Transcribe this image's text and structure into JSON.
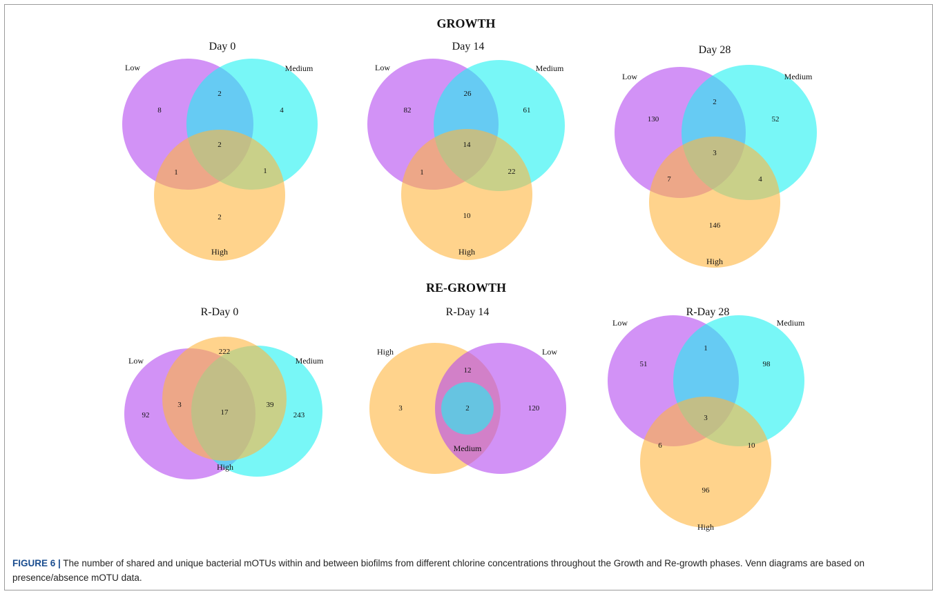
{
  "colors": {
    "low": "#b44af0",
    "medium": "#1ef2f2",
    "high": "#ffb640",
    "frame_border": "#9a9a9a",
    "caption_lead": "#1a4d8f"
  },
  "growth": {
    "title": "GROWTH",
    "panels": [
      {
        "title": "Day 0",
        "labels": {
          "low": "Low",
          "medium": "Medium",
          "high": "High"
        },
        "counts": [
          "8",
          "4",
          "2",
          "2",
          "1",
          "1",
          "2"
        ]
      },
      {
        "title": "Day 14",
        "labels": {
          "low": "Low",
          "medium": "Medium",
          "high": "High"
        },
        "counts": [
          "82",
          "61",
          "10",
          "26",
          "1",
          "22",
          "14"
        ]
      },
      {
        "title": "Day 28",
        "labels": {
          "low": "Low",
          "medium": "Medium",
          "high": "High"
        },
        "counts": [
          "130",
          "52",
          "146",
          "2",
          "7",
          "4",
          "3"
        ]
      }
    ]
  },
  "regrowth": {
    "title": "RE-GROWTH",
    "panels": [
      {
        "title": "R-Day 0",
        "labels": {
          "low": "Low",
          "medium": "Medium",
          "high": "High"
        },
        "counts": [
          "92",
          "222",
          "243",
          "3",
          "17",
          "39"
        ]
      },
      {
        "title": "R-Day 14",
        "labels": {
          "high": "High",
          "low": "Low",
          "medium": "Medium"
        },
        "counts": [
          "3",
          "12",
          "2",
          "120"
        ]
      },
      {
        "title": "R-Day 28",
        "labels": {
          "low": "Low",
          "medium": "Medium",
          "high": "High"
        },
        "counts": [
          "51",
          "98",
          "96",
          "1",
          "6",
          "10",
          "3"
        ]
      }
    ]
  },
  "caption": {
    "lead": "FIGURE 6 |",
    "text": " The number of shared and unique bacterial mOTUs within and between biofilms from different chlorine concentrations throughout the Growth and Re-growth phases. Venn diagrams are based on presence/absence mOTU data."
  }
}
